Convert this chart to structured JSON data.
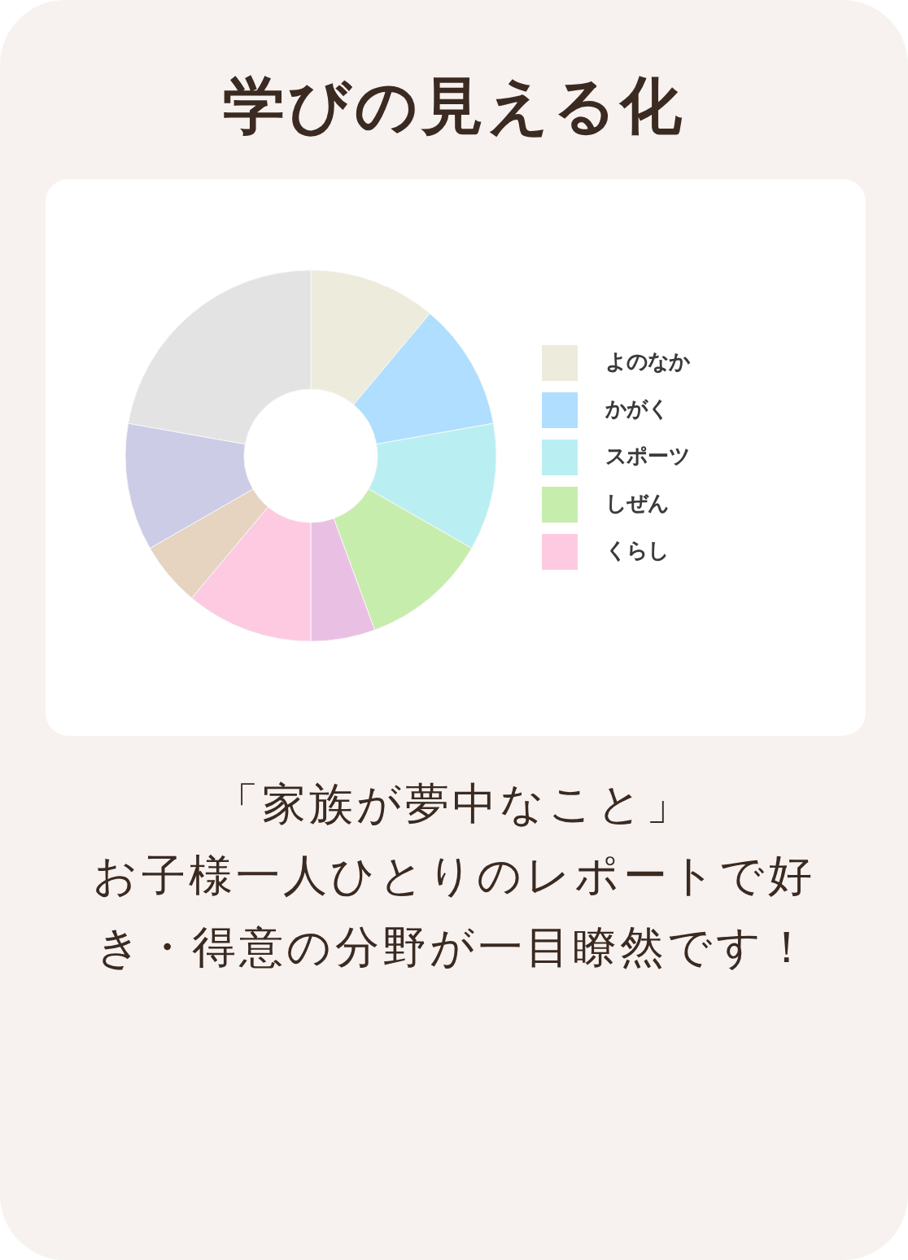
{
  "chart_data": {
    "type": "donut",
    "title": "学びの見える化",
    "categories": [
      "よのなか",
      "かがく",
      "スポーツ",
      "しぜん",
      null,
      "くらし",
      null,
      null,
      null
    ],
    "values": [
      11.1,
      11.1,
      11.1,
      11.1,
      5.6,
      11.1,
      5.6,
      11.1,
      22.2
    ],
    "colors": [
      "#edebdb",
      "#afdeff",
      "#b9eff2",
      "#c7edad",
      "#e9c0e3",
      "#fdcae2",
      "#e6d3c0",
      "#cccce6",
      "#e3e3e3"
    ],
    "legend": "right",
    "annotations": [
      "「家族が夢中なこと」",
      "お子様一人ひとりのレポートで好き・得意の分野が一目瞭然です！"
    ]
  }
}
